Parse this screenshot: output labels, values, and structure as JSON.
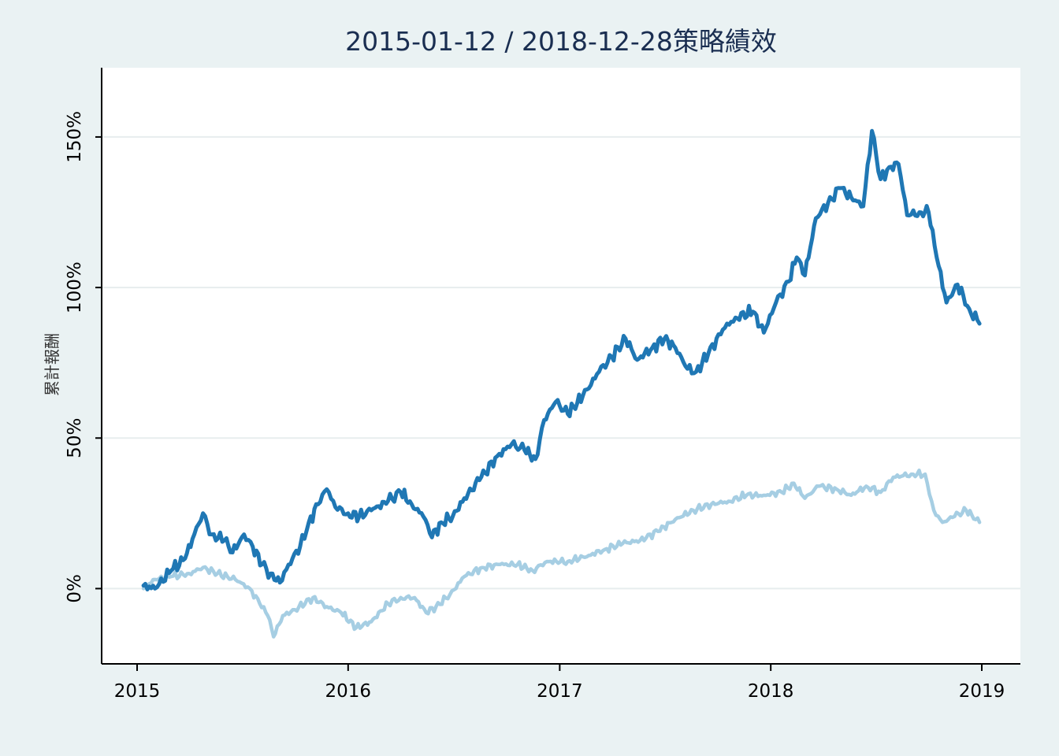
{
  "colors": {
    "background": "#eaf2f3",
    "plot_background": "#ffffff",
    "title": "#1a2e51",
    "series_strategy": "#1f77b4",
    "series_benchmark": "#a6cee3"
  },
  "chart_data": {
    "type": "line",
    "title": "2015-01-12 / 2018-12-28策略績效",
    "xlabel": "",
    "ylabel": "累計報酬",
    "x_ticks": [
      "2015",
      "2016",
      "2017",
      "2018",
      "2019"
    ],
    "y_ticks": [
      "0%",
      "50%",
      "100%",
      "150%"
    ],
    "y_tick_values": [
      0,
      50,
      100,
      150
    ],
    "xlim": [
      "2015-01-01",
      "2019-01-01"
    ],
    "ylim": [
      -25,
      173
    ],
    "grid": "horizontal",
    "legend": "none",
    "series": [
      {
        "color": "#1f77b4",
        "points": [
          [
            "2015-01-12",
            1
          ],
          [
            "2015-02-01",
            0
          ],
          [
            "2015-03-01",
            6
          ],
          [
            "2015-03-25",
            10
          ],
          [
            "2015-04-10",
            18
          ],
          [
            "2015-04-25",
            25
          ],
          [
            "2015-05-10",
            18
          ],
          [
            "2015-06-01",
            16
          ],
          [
            "2015-06-15",
            12
          ],
          [
            "2015-07-05",
            18
          ],
          [
            "2015-07-20",
            14
          ],
          [
            "2015-08-05",
            8
          ],
          [
            "2015-08-20",
            5
          ],
          [
            "2015-09-05",
            2
          ],
          [
            "2015-09-20",
            8
          ],
          [
            "2015-10-10",
            14
          ],
          [
            "2015-10-25",
            22
          ],
          [
            "2015-11-10",
            28
          ],
          [
            "2015-11-25",
            33
          ],
          [
            "2015-12-10",
            27
          ],
          [
            "2016-01-01",
            25
          ],
          [
            "2016-01-20",
            24
          ],
          [
            "2016-02-10",
            26
          ],
          [
            "2016-03-10",
            29
          ],
          [
            "2016-04-01",
            32
          ],
          [
            "2016-04-20",
            28
          ],
          [
            "2016-05-10",
            24
          ],
          [
            "2016-05-25",
            17
          ],
          [
            "2016-06-10",
            22
          ],
          [
            "2016-06-30",
            24
          ],
          [
            "2016-07-20",
            30
          ],
          [
            "2016-08-15",
            36
          ],
          [
            "2016-09-15",
            44
          ],
          [
            "2016-10-10",
            48
          ],
          [
            "2016-11-01",
            46
          ],
          [
            "2016-11-20",
            43
          ],
          [
            "2016-12-05",
            56
          ],
          [
            "2016-12-25",
            62
          ],
          [
            "2017-01-15",
            58
          ],
          [
            "2017-02-10",
            64
          ],
          [
            "2017-03-10",
            72
          ],
          [
            "2017-04-01",
            77
          ],
          [
            "2017-04-25",
            83
          ],
          [
            "2017-05-15",
            76
          ],
          [
            "2017-06-10",
            80
          ],
          [
            "2017-07-01",
            83
          ],
          [
            "2017-07-20",
            80
          ],
          [
            "2017-08-10",
            73
          ],
          [
            "2017-08-25",
            72
          ],
          [
            "2017-09-15",
            78
          ],
          [
            "2017-10-10",
            86
          ],
          [
            "2017-11-01",
            90
          ],
          [
            "2017-12-01",
            92
          ],
          [
            "2017-12-20",
            85
          ],
          [
            "2018-01-10",
            95
          ],
          [
            "2018-02-01",
            102
          ],
          [
            "2018-02-15",
            110
          ],
          [
            "2018-03-01",
            104
          ],
          [
            "2018-03-20",
            123
          ],
          [
            "2018-04-10",
            128
          ],
          [
            "2018-05-01",
            133
          ],
          [
            "2018-05-20",
            130
          ],
          [
            "2018-06-10",
            127
          ],
          [
            "2018-06-25",
            152
          ],
          [
            "2018-07-10",
            136
          ],
          [
            "2018-07-25",
            140
          ],
          [
            "2018-08-10",
            141
          ],
          [
            "2018-08-25",
            124
          ],
          [
            "2018-09-15",
            125
          ],
          [
            "2018-10-01",
            125
          ],
          [
            "2018-10-15",
            110
          ],
          [
            "2018-11-01",
            95
          ],
          [
            "2018-11-20",
            101
          ],
          [
            "2018-12-10",
            93
          ],
          [
            "2018-12-28",
            88
          ]
        ]
      },
      {
        "color": "#a6cee3",
        "points": [
          [
            "2015-01-12",
            0
          ],
          [
            "2015-02-01",
            3
          ],
          [
            "2015-03-01",
            4
          ],
          [
            "2015-04-01",
            5
          ],
          [
            "2015-04-25",
            7
          ],
          [
            "2015-05-20",
            5
          ],
          [
            "2015-06-20",
            3
          ],
          [
            "2015-07-15",
            0
          ],
          [
            "2015-08-01",
            -5
          ],
          [
            "2015-08-15",
            -9
          ],
          [
            "2015-08-25",
            -16
          ],
          [
            "2015-09-10",
            -9
          ],
          [
            "2015-10-01",
            -7
          ],
          [
            "2015-11-01",
            -3
          ],
          [
            "2015-11-25",
            -6
          ],
          [
            "2015-12-20",
            -8
          ],
          [
            "2016-01-15",
            -13
          ],
          [
            "2016-02-10",
            -11
          ],
          [
            "2016-03-10",
            -5
          ],
          [
            "2016-04-01",
            -3
          ],
          [
            "2016-04-25",
            -3
          ],
          [
            "2016-05-15",
            -8
          ],
          [
            "2016-06-01",
            -6
          ],
          [
            "2016-06-25",
            -2
          ],
          [
            "2016-07-20",
            4
          ],
          [
            "2016-08-20",
            7
          ],
          [
            "2016-09-20",
            8
          ],
          [
            "2016-10-20",
            8
          ],
          [
            "2016-11-15",
            6
          ],
          [
            "2016-12-10",
            9
          ],
          [
            "2017-01-15",
            9
          ],
          [
            "2017-02-20",
            11
          ],
          [
            "2017-03-20",
            13
          ],
          [
            "2017-04-20",
            15
          ],
          [
            "2017-05-20",
            16
          ],
          [
            "2017-06-20",
            19
          ],
          [
            "2017-07-20",
            23
          ],
          [
            "2017-08-20",
            26
          ],
          [
            "2017-09-20",
            28
          ],
          [
            "2017-10-20",
            29
          ],
          [
            "2017-11-20",
            31
          ],
          [
            "2017-12-20",
            31
          ],
          [
            "2018-01-20",
            32
          ],
          [
            "2018-02-10",
            35
          ],
          [
            "2018-03-01",
            30
          ],
          [
            "2018-03-25",
            34
          ],
          [
            "2018-04-25",
            33
          ],
          [
            "2018-05-20",
            31
          ],
          [
            "2018-06-15",
            34
          ],
          [
            "2018-07-10",
            32
          ],
          [
            "2018-08-01",
            37
          ],
          [
            "2018-09-01",
            38
          ],
          [
            "2018-09-25",
            38
          ],
          [
            "2018-10-10",
            26
          ],
          [
            "2018-10-25",
            22
          ],
          [
            "2018-11-15",
            24
          ],
          [
            "2018-12-05",
            26
          ],
          [
            "2018-12-28",
            22
          ]
        ]
      }
    ]
  }
}
